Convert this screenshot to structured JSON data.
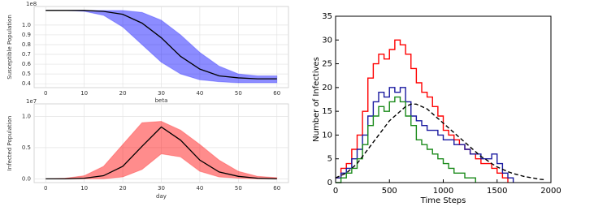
{
  "chart_data": [
    {
      "type": "line",
      "ylabel": "Susceptible Population",
      "offset_text": "1e8",
      "grid": true,
      "x": [
        0,
        5,
        10,
        15,
        20,
        25,
        30,
        35,
        40,
        45,
        50,
        55,
        60
      ],
      "xlim": [
        -3,
        63
      ],
      "xticks": [
        0,
        10,
        20,
        30,
        40,
        50,
        60
      ],
      "ylim": [
        0.36,
        1.19
      ],
      "yticks": [
        0.4,
        0.5,
        0.6,
        0.7,
        0.8,
        0.9,
        {
          "value": 1.0,
          "label": "1.0"
        }
      ],
      "band": {
        "color": "#0000ff",
        "lower": [
          1.15,
          1.15,
          1.14,
          1.1,
          0.98,
          0.8,
          0.62,
          0.5,
          0.44,
          0.42,
          0.41,
          0.41,
          0.41
        ],
        "upper": [
          1.15,
          1.15,
          1.15,
          1.15,
          1.15,
          1.13,
          1.05,
          0.9,
          0.72,
          0.58,
          0.5,
          0.48,
          0.48
        ]
      },
      "series": [
        {
          "color": "#000000",
          "values": [
            1.15,
            1.15,
            1.15,
            1.14,
            1.11,
            1.02,
            0.87,
            0.68,
            0.55,
            0.48,
            0.46,
            0.45,
            0.45
          ]
        }
      ]
    },
    {
      "type": "line",
      "title": "beta",
      "xlabel": "day",
      "ylabel": "Infected Population",
      "offset_text": "1e7",
      "grid": true,
      "x": [
        0,
        5,
        10,
        15,
        20,
        25,
        30,
        35,
        40,
        45,
        50,
        55,
        60
      ],
      "xlim": [
        -3,
        63
      ],
      "xticks": [
        0,
        10,
        20,
        30,
        40,
        50,
        60
      ],
      "ylim": [
        -0.06,
        1.2
      ],
      "yticks": [
        {
          "value": 0.0,
          "label": "0.0"
        },
        0.5,
        {
          "value": 1.0,
          "label": "1.0"
        }
      ],
      "band": {
        "color": "#ff0000",
        "lower": [
          0,
          0,
          0,
          0,
          0.03,
          0.15,
          0.4,
          0.35,
          0.12,
          0.03,
          0.01,
          0,
          0
        ],
        "upper": [
          0,
          0.01,
          0.05,
          0.2,
          0.55,
          0.9,
          0.92,
          0.78,
          0.55,
          0.3,
          0.12,
          0.04,
          0.02
        ]
      },
      "series": [
        {
          "color": "#000000",
          "values": [
            0,
            0,
            0.01,
            0.05,
            0.2,
            0.52,
            0.83,
            0.62,
            0.3,
            0.11,
            0.04,
            0.01,
            0
          ]
        }
      ]
    },
    {
      "type": "step",
      "xlabel": "Time  Steps",
      "ylabel": "Number of Infectives",
      "grid": false,
      "x": [
        0,
        50,
        100,
        150,
        200,
        250,
        300,
        350,
        400,
        450,
        500,
        550,
        600,
        650,
        700,
        750,
        800,
        850,
        900,
        950,
        1000,
        1050,
        1100,
        1150,
        1200,
        1250,
        1300,
        1350,
        1400,
        1450,
        1500,
        1550,
        1600,
        1650,
        1700,
        1750,
        1800,
        1850,
        1900,
        1950,
        2000
      ],
      "xlim": [
        0,
        2000
      ],
      "xticks": [
        0,
        500,
        1000,
        1500,
        2000
      ],
      "ylim": [
        0,
        35
      ],
      "yticks": [
        0,
        5,
        10,
        15,
        20,
        25,
        30,
        35
      ],
      "series": [
        {
          "color": "#ff0000",
          "values": [
            1,
            3,
            4,
            7,
            10,
            15,
            22,
            25,
            27,
            26,
            28,
            30,
            29,
            27,
            24,
            21,
            19,
            18,
            16,
            14,
            11,
            10,
            9,
            8,
            7,
            6,
            5,
            4,
            4,
            3,
            2,
            1,
            0,
            null,
            null,
            null,
            null,
            null,
            null,
            null,
            null
          ]
        },
        {
          "color": "#1a1aa0",
          "values": [
            1,
            2,
            3,
            5,
            7,
            10,
            14,
            17,
            19,
            18,
            20,
            19,
            20,
            17,
            14,
            13,
            12,
            11,
            11,
            10,
            9,
            9,
            8,
            8,
            7,
            6,
            6,
            5,
            5,
            6,
            4,
            2,
            1,
            0,
            null,
            null,
            null,
            null,
            null,
            null,
            null
          ]
        },
        {
          "color": "#1a8a1a",
          "values": [
            0,
            1,
            2,
            3,
            5,
            8,
            12,
            14,
            16,
            15,
            17,
            18,
            17,
            14,
            12,
            9,
            8,
            7,
            6,
            5,
            4,
            3,
            2,
            2,
            1,
            1,
            0,
            null,
            null,
            null,
            null,
            null,
            null,
            null,
            null,
            null,
            null,
            null,
            null,
            null,
            null
          ]
        },
        {
          "color": "#000000",
          "dashed": true,
          "smooth": true,
          "values": [
            1,
            1.5,
            2,
            3,
            4,
            5.5,
            7,
            8.5,
            10,
            11.5,
            13,
            14,
            15,
            16,
            16.5,
            16.5,
            16,
            15.5,
            14.5,
            13.5,
            12.5,
            11.5,
            10.5,
            9.5,
            8.5,
            7.5,
            6.5,
            5.5,
            4.8,
            4,
            3.3,
            2.8,
            2.3,
            1.9,
            1.6,
            1.3,
            1.1,
            0.9,
            0.7,
            0.6,
            null
          ]
        }
      ]
    }
  ]
}
